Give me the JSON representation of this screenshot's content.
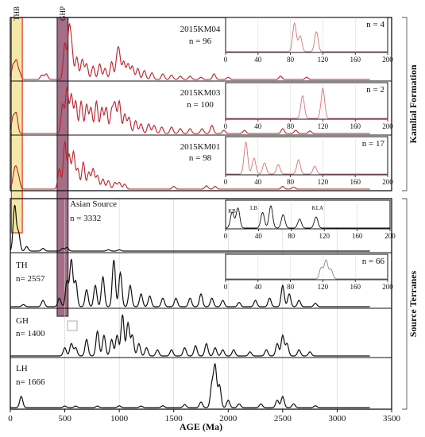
{
  "chart_data": {
    "type": "line",
    "xlabel": "AGE (Ma)",
    "xlim": [
      0,
      3500
    ],
    "x_ticks": [
      0,
      500,
      1000,
      1500,
      2000,
      2500,
      3000,
      3500
    ],
    "grid": true,
    "groups": [
      {
        "label": "Kamlial Formation",
        "panels": [
          "2015KM04",
          "2015KM03",
          "2015KM01"
        ]
      },
      {
        "label": "Source Terranes",
        "panels": [
          "Asian Source",
          "TH",
          "GH",
          "LH"
        ]
      }
    ],
    "highlights": [
      {
        "label": "THB",
        "range": [
          10,
          110
        ],
        "color": "#f2e08a"
      },
      {
        "label": "GHP",
        "range": [
          430,
          530
        ],
        "color": "#8c4a68"
      }
    ],
    "panels": [
      {
        "name": "2015KM04",
        "n_label": "n = 96",
        "color": "#b8202a",
        "peaks": [
          [
            25,
            6
          ],
          [
            55,
            8
          ],
          [
            85,
            3
          ],
          [
            290,
            2
          ],
          [
            330,
            2.5
          ],
          [
            500,
            16
          ],
          [
            540,
            22
          ],
          [
            565,
            12
          ],
          [
            610,
            10
          ],
          [
            660,
            9
          ],
          [
            700,
            7
          ],
          [
            760,
            6
          ],
          [
            820,
            7
          ],
          [
            870,
            5
          ],
          [
            930,
            8
          ],
          [
            980,
            9
          ],
          [
            1000,
            10
          ],
          [
            1040,
            8
          ],
          [
            1080,
            7
          ],
          [
            1120,
            6
          ],
          [
            1170,
            5
          ],
          [
            1230,
            4
          ],
          [
            1300,
            3
          ],
          [
            1400,
            2.5
          ],
          [
            1480,
            2
          ],
          [
            1560,
            1.5
          ],
          [
            1650,
            1.5
          ],
          [
            1750,
            1
          ],
          [
            1870,
            2.5
          ],
          [
            2000,
            1
          ],
          [
            2480,
            1.5
          ],
          [
            2720,
            1
          ]
        ],
        "inset": {
          "n_label": "n = 4",
          "xlim": [
            0,
            200
          ],
          "ticks": [
            0,
            40,
            80,
            120,
            160,
            200
          ],
          "peaks": [
            [
              85,
              1
            ],
            [
              92,
              0.55
            ],
            [
              112,
              0.7
            ]
          ]
        }
      },
      {
        "name": "2015KM03",
        "n_label": "n = 100",
        "color": "#b8202a",
        "peaks": [
          [
            25,
            5
          ],
          [
            55,
            6
          ],
          [
            480,
            9
          ],
          [
            520,
            14
          ],
          [
            560,
            12
          ],
          [
            600,
            10
          ],
          [
            650,
            10
          ],
          [
            700,
            9
          ],
          [
            740,
            8
          ],
          [
            790,
            10
          ],
          [
            840,
            8
          ],
          [
            880,
            8
          ],
          [
            930,
            7
          ],
          [
            960,
            9
          ],
          [
            1000,
            10
          ],
          [
            1050,
            6
          ],
          [
            1090,
            5
          ],
          [
            1150,
            4
          ],
          [
            1200,
            3
          ],
          [
            1270,
            3
          ],
          [
            1320,
            2.5
          ],
          [
            1390,
            2
          ],
          [
            1480,
            2
          ],
          [
            1560,
            1.5
          ],
          [
            1650,
            1.5
          ],
          [
            1760,
            1.5
          ],
          [
            1850,
            2.5
          ],
          [
            1960,
            1
          ],
          [
            2150,
            1
          ],
          [
            2500,
            1.5
          ],
          [
            2620,
            1
          ],
          [
            2750,
            0.8
          ]
        ],
        "inset": {
          "n_label": "n = 2",
          "xlim": [
            0,
            200
          ],
          "ticks": [
            0,
            40,
            80,
            120,
            160,
            200
          ],
          "peaks": [
            [
              95,
              0.75
            ],
            [
              120,
              1
            ]
          ]
        }
      },
      {
        "name": "2015KM01",
        "n_label": "n = 98",
        "color": "#b8202a",
        "peaks": [
          [
            30,
            3
          ],
          [
            50,
            5
          ],
          [
            70,
            2
          ],
          [
            80,
            1.5
          ],
          [
            450,
            6
          ],
          [
            500,
            14
          ],
          [
            540,
            10
          ],
          [
            580,
            11
          ],
          [
            620,
            6
          ],
          [
            670,
            8
          ],
          [
            720,
            5
          ],
          [
            760,
            6
          ],
          [
            800,
            4
          ],
          [
            850,
            3
          ],
          [
            900,
            2.5
          ],
          [
            960,
            2
          ],
          [
            1000,
            2
          ],
          [
            1050,
            1.5
          ],
          [
            1500,
            0.8
          ],
          [
            1800,
            1
          ],
          [
            1880,
            0.8
          ],
          [
            2500,
            0.8
          ],
          [
            2600,
            0.6
          ]
        ],
        "inset": {
          "n_label": "n = 17",
          "xlim": [
            0,
            200
          ],
          "ticks": [
            0,
            40,
            80,
            120,
            160,
            200
          ],
          "peaks": [
            [
              25,
              1
            ],
            [
              35,
              0.5
            ],
            [
              48,
              0.35
            ],
            [
              65,
              0.3
            ],
            [
              90,
              0.45
            ],
            [
              110,
              0.25
            ]
          ]
        }
      },
      {
        "name": "Asian Source",
        "n_label": "n = 3332",
        "color": "#111111",
        "peaks": [
          [
            40,
            10
          ],
          [
            75,
            4
          ],
          [
            150,
            1
          ],
          [
            300,
            0.6
          ],
          [
            480,
            0.6
          ],
          [
            520,
            0.8
          ],
          [
            900,
            0.3
          ],
          [
            1000,
            0.3
          ]
        ],
        "inset": {
          "n_label": "",
          "xlim": [
            0,
            200
          ],
          "ticks": [
            0,
            40,
            80,
            120,
            160,
            200
          ],
          "labels": [
            "KB",
            "LB",
            "KLA"
          ],
          "peaks": [
            [
              8,
              0.7
            ],
            [
              15,
              0.9
            ],
            [
              45,
              0.7
            ],
            [
              55,
              1
            ],
            [
              70,
              0.6
            ],
            [
              90,
              0.4
            ],
            [
              110,
              0.5
            ]
          ]
        }
      },
      {
        "name": "TH",
        "n_label": "n= 2557",
        "color": "#111111",
        "peaks": [
          [
            120,
            0.5
          ],
          [
            300,
            1.5
          ],
          [
            450,
            2
          ],
          [
            520,
            6
          ],
          [
            560,
            11
          ],
          [
            600,
            6
          ],
          [
            700,
            4
          ],
          [
            780,
            5
          ],
          [
            850,
            7
          ],
          [
            950,
            11
          ],
          [
            1010,
            8
          ],
          [
            1100,
            5
          ],
          [
            1200,
            3
          ],
          [
            1280,
            2.5
          ],
          [
            1400,
            2
          ],
          [
            1520,
            2
          ],
          [
            1650,
            2
          ],
          [
            1750,
            3
          ],
          [
            1850,
            2
          ],
          [
            1950,
            1.5
          ],
          [
            2100,
            1
          ],
          [
            2250,
            1.5
          ],
          [
            2380,
            2
          ],
          [
            2500,
            5
          ],
          [
            2560,
            3
          ],
          [
            2650,
            1.5
          ],
          [
            2800,
            0.8
          ]
        ],
        "inset": {
          "n_label": "n = 66",
          "xlim": [
            0,
            200
          ],
          "ticks": [
            0,
            40,
            80,
            120,
            160,
            200
          ],
          "peaks": [
            [
              118,
              0.6
            ],
            [
              124,
              1
            ],
            [
              130,
              0.5
            ]
          ]
        }
      },
      {
        "name": "GH",
        "n_label": "n= 1400",
        "color": "#111111",
        "peaks": [
          [
            500,
            2
          ],
          [
            560,
            3
          ],
          [
            600,
            2
          ],
          [
            700,
            4
          ],
          [
            800,
            6
          ],
          [
            860,
            5
          ],
          [
            930,
            4
          ],
          [
            980,
            5
          ],
          [
            1030,
            10
          ],
          [
            1080,
            8
          ],
          [
            1120,
            5
          ],
          [
            1180,
            3
          ],
          [
            1250,
            2
          ],
          [
            1350,
            1.5
          ],
          [
            1480,
            1.5
          ],
          [
            1600,
            2
          ],
          [
            1700,
            2.5
          ],
          [
            1800,
            3
          ],
          [
            1880,
            2
          ],
          [
            1950,
            1.5
          ],
          [
            2050,
            1.5
          ],
          [
            2200,
            1
          ],
          [
            2350,
            1.5
          ],
          [
            2450,
            3
          ],
          [
            2500,
            5
          ],
          [
            2540,
            3
          ],
          [
            2650,
            1.5
          ],
          [
            2750,
            1
          ]
        ]
      },
      {
        "name": "LH",
        "n_label": "n= 1666",
        "color": "#111111",
        "peaks": [
          [
            100,
            3
          ],
          [
            500,
            0.4
          ],
          [
            600,
            0.4
          ],
          [
            800,
            0.4
          ],
          [
            1000,
            0.5
          ],
          [
            1200,
            0.4
          ],
          [
            1400,
            0.5
          ],
          [
            1600,
            0.8
          ],
          [
            1750,
            1.5
          ],
          [
            1850,
            6
          ],
          [
            1880,
            11
          ],
          [
            1920,
            6
          ],
          [
            2000,
            2
          ],
          [
            2100,
            1
          ],
          [
            2300,
            1
          ],
          [
            2450,
            2
          ],
          [
            2500,
            3
          ],
          [
            2600,
            1
          ],
          [
            2800,
            0.5
          ]
        ]
      }
    ]
  }
}
